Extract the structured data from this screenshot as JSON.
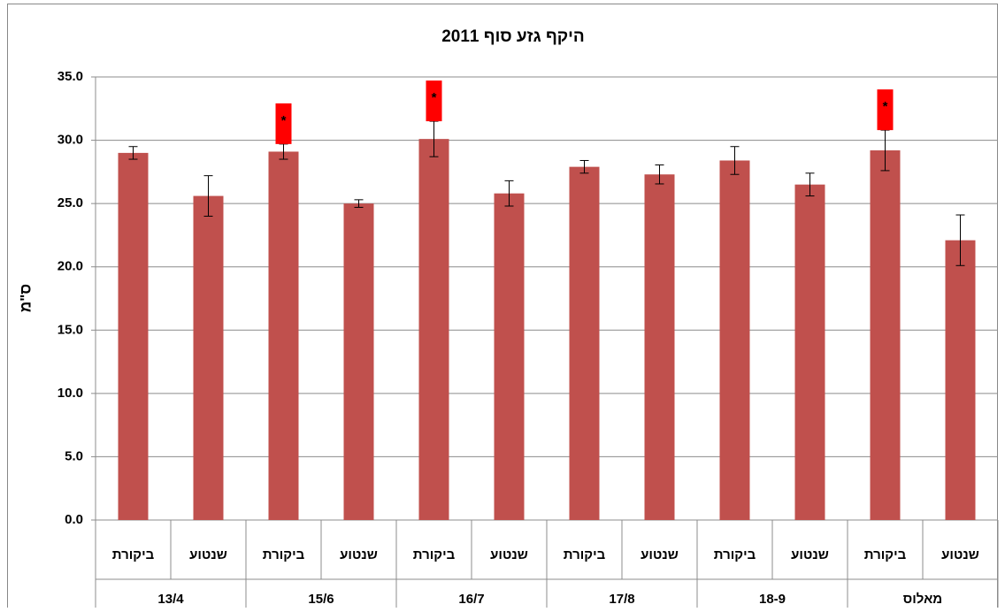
{
  "chart_data": {
    "type": "bar",
    "title": "היקף גזע סוף 2011",
    "y_label": "ס\"מ",
    "categories": [
      "ביקורת",
      "שנטוע",
      "ביקורת",
      "שנטוע",
      "ביקורת",
      "שנטוע",
      "ביקורת",
      "שנטוע",
      "ביקורת",
      "שנטוע",
      "ביקורת",
      "שנטוע"
    ],
    "groups": [
      "13/4",
      "15/6",
      "16/7",
      "17/8",
      "18-9",
      "מאלוס"
    ],
    "values": [
      29.0,
      25.6,
      29.1,
      25.0,
      30.1,
      25.8,
      27.9,
      27.3,
      28.4,
      26.5,
      29.2,
      22.1
    ],
    "errors": [
      0.5,
      1.6,
      0.6,
      0.3,
      1.4,
      1.0,
      0.5,
      0.75,
      1.1,
      0.9,
      1.6,
      2.0
    ],
    "color": "#c0504d",
    "annotations": [
      {
        "text": "*",
        "bar": 2
      },
      {
        "text": "*",
        "bar": 4
      },
      {
        "text": "*",
        "bar": 10
      }
    ],
    "annotation_color": "#ff0000",
    "ylim": [
      0,
      35
    ],
    "yticks": [
      {
        "value": 0,
        "label": "0.0"
      },
      {
        "value": 5,
        "label": "5.0"
      },
      {
        "value": 10,
        "label": "10.0"
      },
      {
        "value": 15,
        "label": "15.0"
      },
      {
        "value": 20,
        "label": "20.0"
      },
      {
        "value": 25,
        "label": "25.0"
      },
      {
        "value": 30,
        "label": "30.0"
      },
      {
        "value": 35,
        "label": "35.0"
      }
    ],
    "grid": true
  }
}
